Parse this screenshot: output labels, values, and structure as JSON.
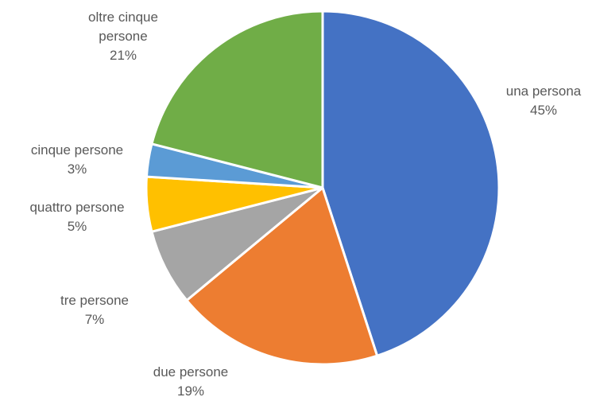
{
  "chart_data": {
    "type": "pie",
    "title": "",
    "legend": "none",
    "start_angle_deg": 0,
    "direction": "clockwise",
    "slices": [
      {
        "name": "una persona",
        "label_lines": [
          "una persona",
          "45%"
        ],
        "value": 45,
        "color": "#4472C4"
      },
      {
        "name": "due persone",
        "label_lines": [
          "due persone",
          "19%"
        ],
        "value": 19,
        "color": "#ED7D31"
      },
      {
        "name": "tre persone",
        "label_lines": [
          "tre persone",
          "7%"
        ],
        "value": 7,
        "color": "#A5A5A5"
      },
      {
        "name": "quattro persone",
        "label_lines": [
          "quattro persone",
          "5%"
        ],
        "value": 5,
        "color": "#FFC000"
      },
      {
        "name": "cinque persone",
        "label_lines": [
          "cinque persone",
          "3%"
        ],
        "value": 3,
        "color": "#5B9BD5"
      },
      {
        "name": "oltre cinque persone",
        "label_lines": [
          "oltre cinque",
          "persone",
          "21%"
        ],
        "value": 21,
        "color": "#70AD47"
      }
    ]
  }
}
